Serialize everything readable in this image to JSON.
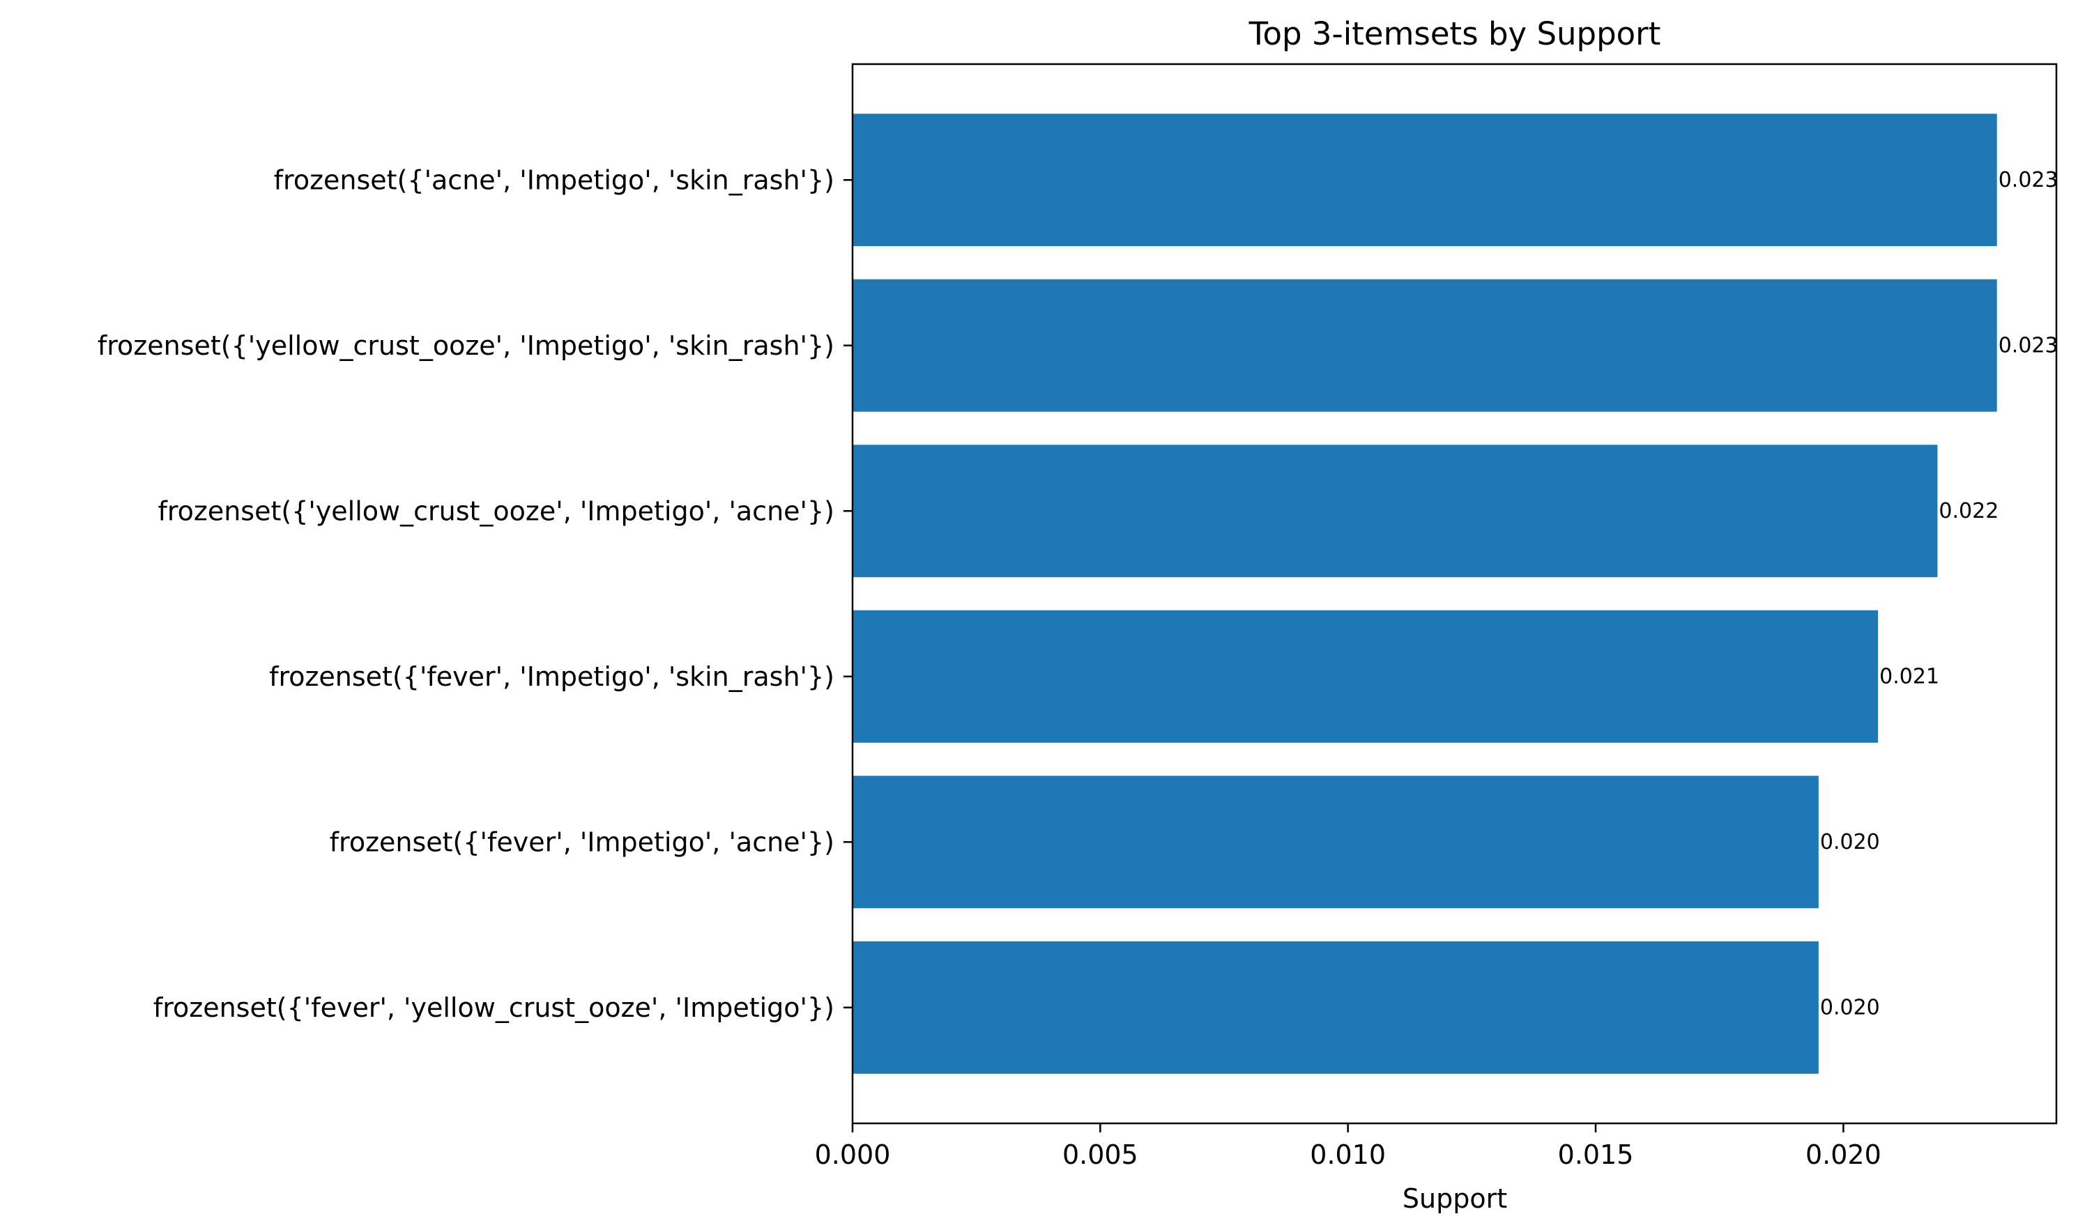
{
  "chart_data": {
    "type": "bar",
    "orientation": "horizontal",
    "title": "Top 3-itemsets by Support",
    "xlabel": "Support",
    "ylabel": "",
    "categories": [
      "frozenset({'acne', 'Impetigo', 'skin_rash'})",
      "frozenset({'yellow_crust_ooze', 'Impetigo', 'skin_rash'})",
      "frozenset({'yellow_crust_ooze', 'Impetigo', 'acne'})",
      "frozenset({'fever', 'Impetigo', 'skin_rash'})",
      "frozenset({'fever', 'Impetigo', 'acne'})",
      "frozenset({'fever', 'yellow_crust_ooze', 'Impetigo'})"
    ],
    "values": [
      0.0231,
      0.0231,
      0.0219,
      0.0207,
      0.0195,
      0.0195
    ],
    "value_labels": [
      "0.023",
      "0.023",
      "0.022",
      "0.021",
      "0.020",
      "0.020"
    ],
    "xlim": [
      0,
      0.0243
    ],
    "xticks": [
      0.0,
      0.005,
      0.01,
      0.015,
      0.02
    ],
    "xtick_labels": [
      "0.000",
      "0.005",
      "0.010",
      "0.015",
      "0.020"
    ],
    "bar_color": "#1f77b4",
    "grid": false,
    "legend": false
  }
}
